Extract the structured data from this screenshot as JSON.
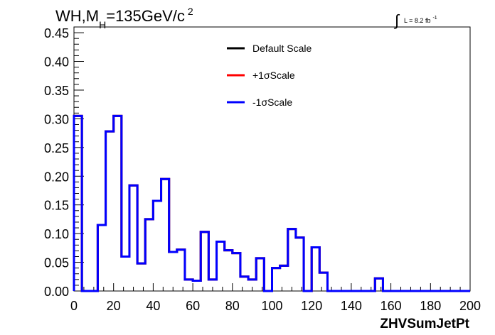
{
  "chart_data": {
    "type": "line",
    "title": {
      "main": "WH,M",
      "sub": "H",
      "tail": "=135GeV/c",
      "sup": "2"
    },
    "lumi": {
      "integral": "∫",
      "text": "L = 8.2 fb",
      "sup": "-1"
    },
    "xlabel": "ZHVSumJetPt",
    "ylabel": "",
    "xlim": [
      0,
      200
    ],
    "ylim": [
      0,
      0.46
    ],
    "x_ticks": [
      "0",
      "20",
      "40",
      "60",
      "80",
      "100",
      "120",
      "140",
      "160",
      "180",
      "200"
    ],
    "y_ticks": [
      "0.00",
      "0.05",
      "0.10",
      "0.15",
      "0.20",
      "0.25",
      "0.30",
      "0.35",
      "0.40",
      "0.45"
    ],
    "grid": false,
    "legend_position": "top-center",
    "bin_width": 4,
    "series": [
      {
        "name": "Default Scale",
        "color": "#000000",
        "values": [
          0.305,
          0.0,
          0.0,
          0.115,
          0.278,
          0.305,
          0.06,
          0.184,
          0.048,
          0.125,
          0.157,
          0.195,
          0.068,
          0.072,
          0.02,
          0.018,
          0.103,
          0.02,
          0.086,
          0.071,
          0.066,
          0.025,
          0.02,
          0.057,
          0.0,
          0.04,
          0.044,
          0.108,
          0.093,
          0.0,
          0.076,
          0.032,
          0.0,
          0.0,
          0.0,
          0.0,
          0.0,
          0.0,
          0.022,
          0.0,
          0.0,
          0.0,
          0.0,
          0.0,
          0.0,
          0.0,
          0.0,
          0.0,
          0.0,
          0.0
        ]
      },
      {
        "name": "+1σScale",
        "color": "#ff0000",
        "values": [
          0.305,
          0.0,
          0.0,
          0.115,
          0.278,
          0.305,
          0.06,
          0.184,
          0.048,
          0.125,
          0.157,
          0.195,
          0.068,
          0.072,
          0.02,
          0.018,
          0.103,
          0.02,
          0.086,
          0.071,
          0.066,
          0.025,
          0.02,
          0.057,
          0.0,
          0.04,
          0.044,
          0.108,
          0.093,
          0.0,
          0.076,
          0.032,
          0.0,
          0.0,
          0.0,
          0.0,
          0.0,
          0.0,
          0.022,
          0.0,
          0.0,
          0.0,
          0.0,
          0.0,
          0.0,
          0.0,
          0.0,
          0.0,
          0.0,
          0.0
        ]
      },
      {
        "name": "-1σScale",
        "color": "#0000ff",
        "values": [
          0.305,
          0.0,
          0.0,
          0.115,
          0.278,
          0.305,
          0.06,
          0.184,
          0.048,
          0.125,
          0.157,
          0.195,
          0.068,
          0.072,
          0.02,
          0.018,
          0.103,
          0.02,
          0.086,
          0.071,
          0.066,
          0.025,
          0.02,
          0.057,
          0.0,
          0.04,
          0.044,
          0.108,
          0.093,
          0.0,
          0.076,
          0.032,
          0.0,
          0.0,
          0.0,
          0.0,
          0.0,
          0.0,
          0.022,
          0.0,
          0.0,
          0.0,
          0.0,
          0.0,
          0.0,
          0.0,
          0.0,
          0.0,
          0.0,
          0.0
        ]
      }
    ]
  }
}
